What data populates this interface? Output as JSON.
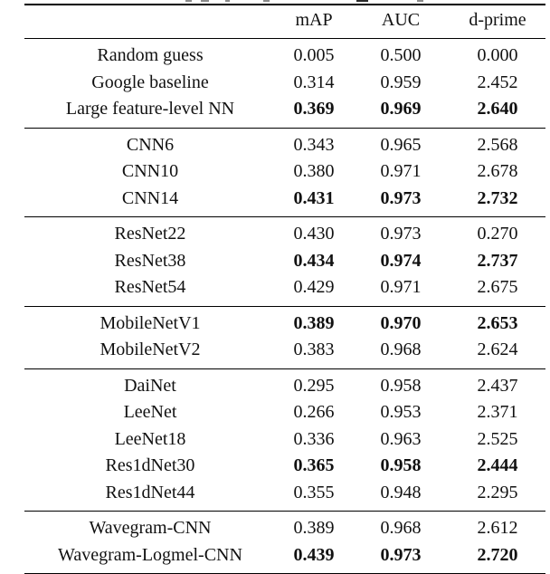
{
  "table": {
    "columns": {
      "model": "",
      "map": "mAP",
      "auc": "AUC",
      "dprime": "d-prime"
    },
    "groups": [
      {
        "rows": [
          {
            "model": "Random guess",
            "map": "0.005",
            "auc": "0.500",
            "dprime": "0.000",
            "bold": false
          },
          {
            "model": "Google baseline",
            "map": "0.314",
            "auc": "0.959",
            "dprime": "2.452",
            "bold": false
          },
          {
            "model": "Large feature-level NN",
            "map": "0.369",
            "auc": "0.969",
            "dprime": "2.640",
            "bold": true
          }
        ]
      },
      {
        "rows": [
          {
            "model": "CNN6",
            "map": "0.343",
            "auc": "0.965",
            "dprime": "2.568",
            "bold": false
          },
          {
            "model": "CNN10",
            "map": "0.380",
            "auc": "0.971",
            "dprime": "2.678",
            "bold": false
          },
          {
            "model": "CNN14",
            "map": "0.431",
            "auc": "0.973",
            "dprime": "2.732",
            "bold": true
          }
        ]
      },
      {
        "rows": [
          {
            "model": "ResNet22",
            "map": "0.430",
            "auc": "0.973",
            "dprime": "0.270",
            "bold": false
          },
          {
            "model": "ResNet38",
            "map": "0.434",
            "auc": "0.974",
            "dprime": "2.737",
            "bold": true
          },
          {
            "model": "ResNet54",
            "map": "0.429",
            "auc": "0.971",
            "dprime": "2.675",
            "bold": false
          }
        ]
      },
      {
        "rows": [
          {
            "model": "MobileNetV1",
            "map": "0.389",
            "auc": "0.970",
            "dprime": "2.653",
            "bold": true
          },
          {
            "model": "MobileNetV2",
            "map": "0.383",
            "auc": "0.968",
            "dprime": "2.624",
            "bold": false
          }
        ]
      },
      {
        "rows": [
          {
            "model": "DaiNet",
            "map": "0.295",
            "auc": "0.958",
            "dprime": "2.437",
            "bold": false
          },
          {
            "model": "LeeNet",
            "map": "0.266",
            "auc": "0.953",
            "dprime": "2.371",
            "bold": false
          },
          {
            "model": "LeeNet18",
            "map": "0.336",
            "auc": "0.963",
            "dprime": "2.525",
            "bold": false
          },
          {
            "model": "Res1dNet30",
            "map": "0.365",
            "auc": "0.958",
            "dprime": "2.444",
            "bold": true
          },
          {
            "model": "Res1dNet44",
            "map": "0.355",
            "auc": "0.948",
            "dprime": "2.295",
            "bold": false
          }
        ]
      },
      {
        "rows": [
          {
            "model": "Wavegram-CNN",
            "map": "0.389",
            "auc": "0.968",
            "dprime": "2.612",
            "bold": false
          },
          {
            "model": "Wavegram-Logmel-CNN",
            "map": "0.439",
            "auc": "0.973",
            "dprime": "2.720",
            "bold": true
          }
        ]
      }
    ],
    "rule_color": "#000000",
    "text_color": "#111111"
  }
}
